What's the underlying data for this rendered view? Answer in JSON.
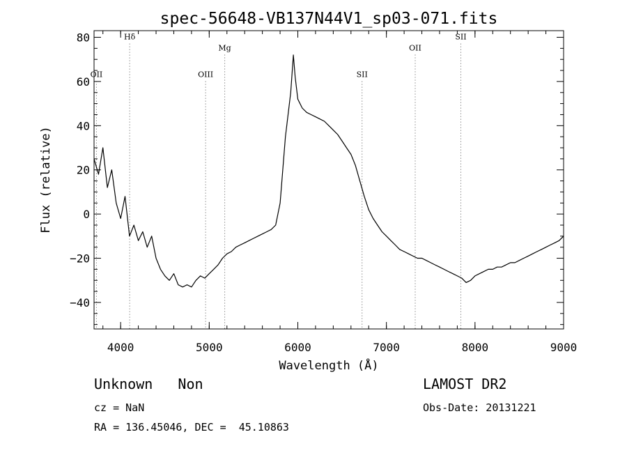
{
  "chart_data": {
    "type": "line",
    "title": "spec-56648-VB137N44V1_sp03-071.fits",
    "xlabel": "Wavelength (Å)",
    "ylabel": "Flux (relative)",
    "xlim": [
      3700,
      9000
    ],
    "ylim": [
      -52,
      83
    ],
    "xticks": [
      4000,
      5000,
      6000,
      7000,
      8000,
      9000
    ],
    "xtick_labels": [
      "4000",
      "5000",
      "6000",
      "7000",
      "8000",
      "9000"
    ],
    "yticks": [
      -40,
      -20,
      0,
      20,
      40,
      60,
      80
    ],
    "ytick_labels": [
      "−40",
      "−20",
      "0",
      "20",
      "40",
      "60",
      "80"
    ],
    "grid": false,
    "line_color": "#000000",
    "series": [
      {
        "x": [
          3700,
          3750,
          3800,
          3850,
          3900,
          3950,
          4000,
          4050,
          4100,
          4150,
          4200,
          4250,
          4300,
          4350,
          4400,
          4450,
          4500,
          4550,
          4600,
          4650,
          4700,
          4750,
          4800,
          4850,
          4900,
          4950,
          5000,
          5050,
          5100,
          5150,
          5200,
          5250,
          5300,
          5350,
          5400,
          5450,
          5500,
          5550,
          5600,
          5650,
          5700,
          5750,
          5800,
          5830,
          5860,
          5890,
          5920,
          5950,
          5970,
          6000,
          6050,
          6100,
          6150,
          6200,
          6250,
          6300,
          6350,
          6400,
          6450,
          6500,
          6550,
          6600,
          6650,
          6700,
          6750,
          6800,
          6850,
          6900,
          6950,
          7000,
          7050,
          7100,
          7150,
          7200,
          7250,
          7300,
          7350,
          7400,
          7450,
          7500,
          7550,
          7600,
          7650,
          7700,
          7750,
          7800,
          7850,
          7900,
          7950,
          8000,
          8050,
          8100,
          8150,
          8200,
          8250,
          8300,
          8350,
          8400,
          8450,
          8500,
          8550,
          8600,
          8650,
          8700,
          8750,
          8800,
          8850,
          8900,
          8950,
          9000
        ],
        "y": [
          25,
          18,
          30,
          12,
          20,
          5,
          -2,
          8,
          -10,
          -5,
          -12,
          -8,
          -15,
          -10,
          -20,
          -25,
          -28,
          -30,
          -27,
          -32,
          -33,
          -32,
          -33,
          -30,
          -28,
          -29,
          -27,
          -25,
          -23,
          -20,
          -18,
          -17,
          -15,
          -14,
          -13,
          -12,
          -11,
          -10,
          -9,
          -8,
          -7,
          -5,
          5,
          20,
          35,
          45,
          55,
          72,
          62,
          52,
          48,
          46,
          45,
          44,
          43,
          42,
          40,
          38,
          36,
          33,
          30,
          27,
          22,
          15,
          8,
          2,
          -2,
          -5,
          -8,
          -10,
          -12,
          -14,
          -16,
          -17,
          -18,
          -19,
          -20,
          -20,
          -21,
          -22,
          -23,
          -24,
          -25,
          -26,
          -27,
          -28,
          -29,
          -31,
          -30,
          -28,
          -27,
          -26,
          -25,
          -25,
          -24,
          -24,
          -23,
          -22,
          -22,
          -21,
          -20,
          -19,
          -18,
          -17,
          -16,
          -15,
          -14,
          -13,
          -12,
          -10
        ]
      }
    ],
    "lines": [
      {
        "label": "OII",
        "x": 3727,
        "label_y": 62
      },
      {
        "label": "Hδ",
        "x": 4102,
        "label_y": 79
      },
      {
        "label": "OIII",
        "x": 4959,
        "label_y": 62
      },
      {
        "label": "Mg",
        "x": 5175,
        "label_y": 74
      },
      {
        "label": "SII",
        "x": 6725,
        "label_y": 62
      },
      {
        "label": "OII",
        "x": 7325,
        "label_y": 74
      },
      {
        "label": "SII",
        "x": 7840,
        "label_y": 79
      }
    ]
  },
  "info": {
    "object_class": "Unknown",
    "subclass": "Non",
    "cz": "cz = NaN",
    "coords": "RA = 136.45046, DEC =  45.10863",
    "survey": "LAMOST DR2",
    "obs_date": "Obs-Date: 20131221"
  }
}
